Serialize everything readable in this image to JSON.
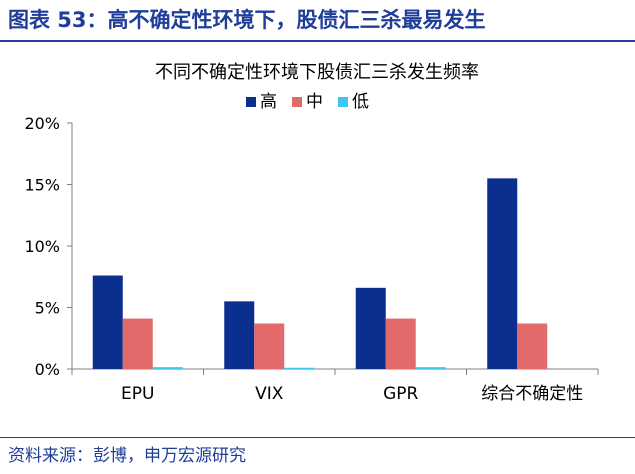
{
  "figure": {
    "title": "图表 53：高不确定性环境下，股债汇三杀最易发生",
    "source": "资料来源：彭博，申万宏源研究"
  },
  "chart_data": {
    "type": "bar",
    "title": "不同不确定性环境下股债汇三杀发生频率",
    "categories": [
      "EPU",
      "VIX",
      "GPR",
      "综合不确定性"
    ],
    "series": [
      {
        "name": "高",
        "color": "#0a2f8f",
        "values": [
          7.6,
          5.5,
          6.6,
          15.5
        ]
      },
      {
        "name": "中",
        "color": "#e26a6a",
        "values": [
          4.1,
          3.7,
          4.1,
          3.7
        ]
      },
      {
        "name": "低",
        "color": "#3fc6ee",
        "values": [
          0.15,
          0.1,
          0.15,
          0
        ]
      }
    ],
    "ylim": [
      0,
      20
    ],
    "yticks": [
      0,
      5,
      10,
      15,
      20
    ],
    "ytick_labels": [
      "0%",
      "5%",
      "10%",
      "15%",
      "20%"
    ],
    "grid": false,
    "legend_position": "top-center"
  }
}
